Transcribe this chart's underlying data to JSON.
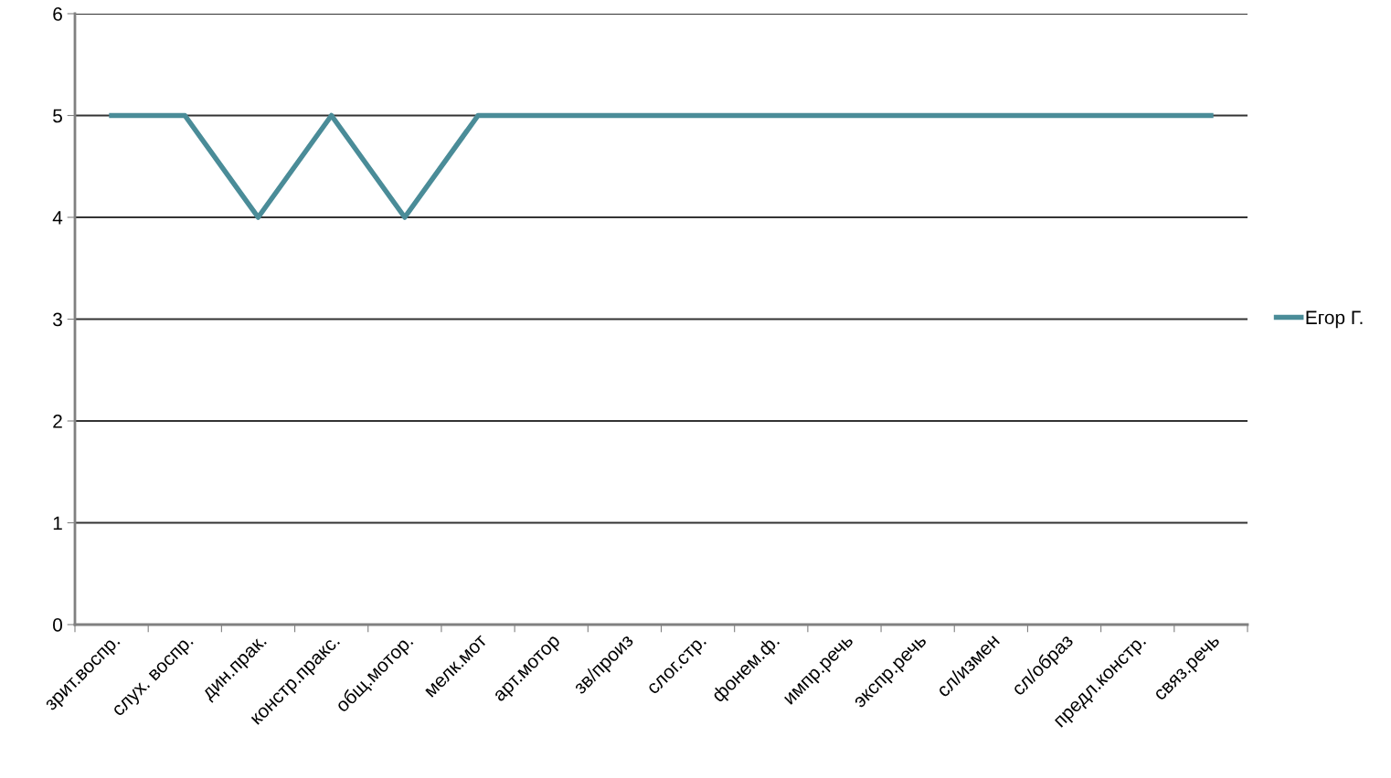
{
  "chart_data": {
    "type": "line",
    "categories": [
      "зрит.воспр.",
      "слух. воспр.",
      "дин.прак.",
      "констр.пракс.",
      "общ.мотор.",
      "мелк.мот",
      "арт.мотор",
      "зв/произ",
      "слог.стр.",
      "фонем.ф.",
      "импр.речь",
      "экспр.речь",
      "сл/измен",
      "сл/образ",
      "предл.констр.",
      "связ.речь"
    ],
    "series": [
      {
        "name": "Егор Г.",
        "color": "#4a8c98",
        "values": [
          5,
          5,
          4,
          5,
          4,
          5,
          5,
          5,
          5,
          5,
          5,
          5,
          5,
          5,
          5,
          5
        ]
      }
    ],
    "ylim": [
      0,
      6
    ],
    "yticks": [
      0,
      1,
      2,
      3,
      4,
      5,
      6
    ],
    "grid": "y",
    "legend": "right",
    "marker": "none",
    "line_style": "solid"
  }
}
